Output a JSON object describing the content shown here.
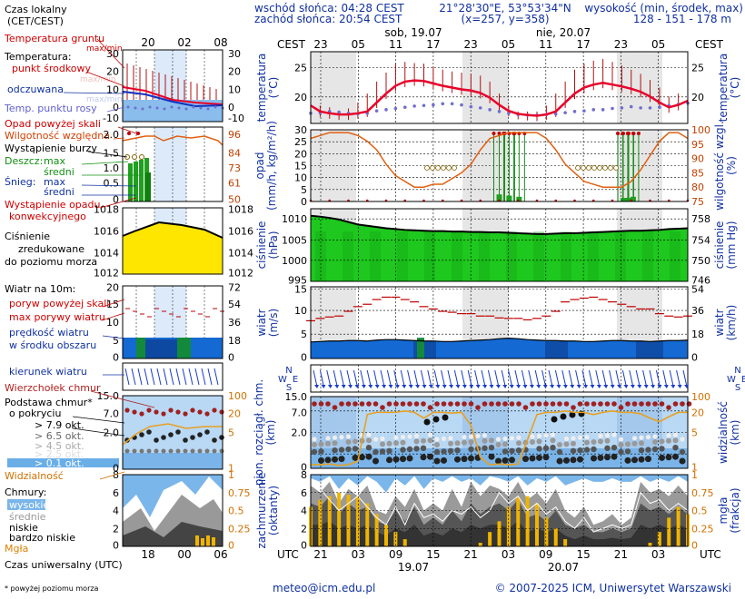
{
  "header": {
    "sunrise": "wschód słońca: 04:28 CEST",
    "sunset": "zachód słońca: 20:54 CEST",
    "coords": "21°28'30\"E, 53°53'34\"N",
    "grid": "(x=257,  y=358)",
    "height_title": "wysokość (min, środek, max)",
    "height_values": "128 - 151 - 178 m"
  },
  "time_axis": {
    "cest_label": "CEST",
    "utc_label": "UTC",
    "cest_ticks": [
      "23",
      "05",
      "11",
      "17",
      "23",
      "05",
      "11",
      "17",
      "23",
      "05"
    ],
    "utc_ticks": [
      "21",
      "03",
      "09",
      "15",
      "21",
      "03",
      "09",
      "15",
      "21",
      "03"
    ],
    "day_labels_top": [
      "sob, 19.07",
      "nie, 20.07"
    ],
    "day_labels_bottom": [
      "19.07",
      "20.07"
    ]
  },
  "legend": {
    "time_title_1": "Czas lokalny",
    "time_title_2": "(CET/CEST)",
    "time_ticks_top": [
      "20",
      "02",
      "08"
    ],
    "utc_title": "Czas uniwersalny (UTC)",
    "utc_ticks": [
      "18",
      "00",
      "06"
    ],
    "temp": {
      "ground": "Temperatura gruntu",
      "ground_sub": "max/min",
      "title": "Temperatura:",
      "mid": "punkt środkowy",
      "max_min": "max/min",
      "felt": "odczuwana",
      "felt_sub": "max/min",
      "dew": "Temp. punktu rosy",
      "ticks_left": [
        "30",
        "20",
        "10",
        "0",
        "-10"
      ],
      "ticks_right": [
        "30",
        "20",
        "10",
        "0",
        "-10"
      ]
    },
    "precip": {
      "excess": "Opad powyżej skali",
      "humidity": "Wilgotność względna",
      "storm": "Wystąpienie burzy",
      "rain": "Deszcz:",
      "rain_max": "max",
      "rain_mid": "średni",
      "snow": "Śnieg:",
      "snow_max": "max",
      "snow_mid": "średni",
      "convective_1": "Wystąpienie opadu",
      "convective_2": "konwekcyjnego",
      "ticks_left": [
        "2.0",
        "1.5",
        "1.0",
        "0.5",
        "0"
      ],
      "ticks_right": [
        "96",
        "84",
        "73",
        "61",
        "50"
      ]
    },
    "pressure": {
      "l1": "Ciśnienie",
      "l2": "zredukowane",
      "l3": "do poziomu morza",
      "ticks_left": [
        "1018",
        "1016",
        "1014",
        "1012"
      ],
      "ticks_right": [
        "1018",
        "1016",
        "1014",
        "1012"
      ]
    },
    "wind": {
      "title": "Wiatr na 10m:",
      "gust_excess": "poryw powyżej skali",
      "gust_max": "max porywy wiatru",
      "speed_1": "prędkość wiatru",
      "speed_2": "w środku obszaru",
      "ticks_left": [
        "20",
        "15",
        "10",
        "5",
        "0"
      ],
      "ticks_right": [
        "72",
        "54",
        "36",
        "18",
        "0"
      ]
    },
    "direction": {
      "label": "kierunek wiatru"
    },
    "cloud_base": {
      "top": "Wierzchołek chmur",
      "base_1": "Podstawa chmur*",
      "base_2": "o pokryciu",
      "okt_79": "> 7.9 okt.",
      "okt_65": "> 6.5 okt.",
      "okt_45": "> 4.5 okt.",
      "okt_25": "> 2.5 okt.",
      "okt_01": "> 0.1 okt.",
      "visibility": "Widzialność",
      "ticks_left": [
        "15.0",
        "7.0",
        "2.0",
        "0"
      ],
      "ticks_right": [
        "100",
        "20",
        "5",
        "1"
      ]
    },
    "clouds": {
      "title": "Chmury:",
      "high": "wysokie",
      "mid": "średnie",
      "low": "niskie",
      "very_low": "bardzo niskie",
      "fog": "Mgła",
      "ticks_left": [
        "8",
        "6",
        "4",
        "2",
        "0"
      ],
      "ticks_right": [
        "1",
        "0.75",
        "0.5",
        "0.25",
        "0"
      ]
    },
    "footnote": "* powyżej poziomu morza"
  },
  "panels": {
    "temperature": {
      "label_l": "temperatura",
      "unit_l": "(°C)",
      "label_r": "temperatura",
      "unit_r": "(°C)",
      "ticks_r": [
        "25",
        "20"
      ],
      "ticks_l": [
        "25",
        "20"
      ]
    },
    "precip": {
      "label_l1": "opad",
      "label_l2": "(mm/h, kg/m²/h)",
      "label_r1": "wilgotność wzgl.",
      "label_r2": "(%)",
      "ticks_l": [
        "30",
        "25",
        "20",
        "15",
        "10",
        "5",
        "0"
      ],
      "ticks_r": [
        "100",
        "95",
        "90",
        "85",
        "80",
        "75"
      ]
    },
    "pressure": {
      "label_l1": "ciśnienie",
      "label_l2": "(hPa)",
      "label_r1": "ciśnienie",
      "label_r2": "(mm Hg)",
      "ticks_l": [
        "1010",
        "1005",
        "1000",
        "995"
      ],
      "ticks_r": [
        "758",
        "754",
        "750",
        "746"
      ]
    },
    "wind": {
      "label_l1": "wiatr",
      "label_l2": "(m/s)",
      "label_r1": "wiatr",
      "label_r2": "(km/h)",
      "ticks_l": [
        "15",
        "10",
        "5",
        "0"
      ],
      "ticks_r": [
        "54",
        "36",
        "18",
        "0"
      ]
    },
    "direction": {
      "n": "N",
      "w": "W",
      "s": "S",
      "e": "E"
    },
    "clouds": {
      "label_l1": "pion. rozciągł. chm.",
      "label_l2": "(km)",
      "label_r1": "widzialność",
      "label_r2": "(km)",
      "ticks_l": [
        "15.0",
        "7.0",
        "2.0",
        "0"
      ],
      "ticks_r": [
        "100",
        "20",
        "5",
        "1"
      ]
    },
    "cover": {
      "label_l1": "zachmurzenie",
      "label_l2": "(oktanty)",
      "label_r1": "mgła",
      "label_r2": "(frakcja)",
      "ticks_l": [
        "8",
        "6",
        "4",
        "2",
        "0"
      ],
      "ticks_r": [
        "1",
        "0.75",
        "0.5",
        "0.25",
        "0"
      ]
    }
  },
  "footer": {
    "email": "meteo@icm.edu.pl",
    "copyright": "© 2007-2025 ICM, Uniwersytet Warszawski"
  },
  "colors": {
    "temperature": "#e8002a",
    "dew": "#6f6fd0",
    "humidity": "#e06010",
    "rain": "#1fa01f",
    "pressure_fill": "#1ec81e",
    "wind_fill": "#1469d2",
    "gust": "#c00000",
    "cloud_top": "#a02020",
    "visibility": "#e8a020",
    "fog": "#f0b400",
    "night_band": "#e6e6e6",
    "blue_label": "#1030a0",
    "red_label": "#d00000"
  },
  "chart_data": {
    "type": "line",
    "x_label": "",
    "hours_utc_start": "18",
    "temperature_c": [
      18.5,
      17.5,
      17.2,
      17,
      17,
      17.2,
      17.5,
      19,
      20.5,
      21.8,
      22.5,
      22.7,
      22.6,
      22.2,
      21.8,
      21.5,
      21.2,
      21,
      20.6,
      19.8,
      18.6,
      17.6,
      17.1,
      16.9,
      16.8,
      17,
      17.5,
      19,
      20.5,
      21.5,
      22,
      22.3,
      22,
      21.7,
      21.3,
      20.8,
      20,
      19,
      18.2,
      18.6,
      19.3
    ],
    "temperature_max_c": [
      19.5,
      18.5,
      18.2,
      17.5,
      18,
      19,
      20.5,
      22.5,
      24,
      25.5,
      25.8,
      25.6,
      25.5,
      25,
      24.5,
      24.2,
      24,
      23.8,
      23.5,
      22.5,
      20.5,
      18.5,
      17.5,
      17.5,
      17.5,
      18.5,
      20.5,
      22.5,
      24.5,
      25.5,
      26,
      26.3,
      25.8,
      25.2,
      24.5,
      23.8,
      22.8,
      21.5,
      20,
      20.5,
      21
    ],
    "dew_point_c": [
      17.2,
      17.3,
      17.5,
      17.4,
      17.2,
      17.1,
      17.2,
      17.6,
      17.8,
      18,
      18.2,
      18.4,
      18.5,
      18.6,
      18.8,
      18.8,
      18.6,
      18.3,
      18.1,
      17.8,
      17.5,
      17.2,
      17,
      16.9,
      16.9,
      17,
      17.1,
      17.3,
      17.5,
      17.6,
      17.8,
      17.8,
      18,
      18.1,
      18.3,
      18.1,
      18.1,
      18.2,
      18.5,
      18.7,
      18.9
    ],
    "humidity_pct": [
      97,
      98,
      99,
      99,
      99,
      98,
      96,
      93,
      88,
      84,
      82,
      80,
      80,
      81,
      81,
      83,
      85,
      88,
      93,
      97,
      98,
      99,
      99,
      99,
      99,
      97,
      93,
      88,
      85,
      82,
      81,
      80,
      80,
      80,
      82,
      86,
      91,
      96,
      99,
      99,
      97
    ],
    "pressure_hpa": [
      1010.8,
      1010.6,
      1010.3,
      1009.9,
      1009.3,
      1008.7,
      1008.4,
      1008.1,
      1007.8,
      1007.6,
      1007.4,
      1007.3,
      1007.2,
      1007.1,
      1007.1,
      1007,
      1007,
      1006.9,
      1006.9,
      1006.8,
      1006.8,
      1006.7,
      1006.6,
      1006.5,
      1006.4,
      1006.4,
      1006.5,
      1006.6,
      1006.6,
      1006.7,
      1006.8,
      1006.9,
      1007,
      1007.1,
      1007.2,
      1007.2,
      1007.3,
      1007.4,
      1007.6,
      1007.7,
      1007.8
    ],
    "wind_ms": [
      3.5,
      3.6,
      3.7,
      3.7,
      3.8,
      3.8,
      3.7,
      3.9,
      4,
      4,
      3.9,
      3.8,
      3.7,
      3.7,
      3.6,
      3.6,
      3.7,
      3.8,
      3.9,
      4,
      4.2,
      4.3,
      4.2,
      4,
      3.9,
      3.8,
      3.8,
      3.7,
      3.7,
      3.6,
      3.6,
      3.7,
      3.8,
      3.8,
      3.7,
      3.7,
      3.6,
      3.7,
      3.8,
      3.8,
      3.9
    ],
    "gust_ms": [
      8,
      8.5,
      8.8,
      9,
      10,
      11,
      11.5,
      12.5,
      13,
      13,
      12.5,
      12,
      11,
      10.5,
      10,
      9.8,
      9.5,
      9.5,
      9,
      9,
      8.6,
      8.5,
      8.5,
      8.2,
      8.5,
      9,
      10,
      12,
      12.5,
      12.8,
      13,
      12.5,
      12,
      11.5,
      11,
      10.5,
      10.5,
      9.5,
      9,
      8.8,
      9
    ],
    "fog_fraction": [
      0.55,
      0.65,
      0.7,
      0.75,
      0.72,
      0.7,
      0.6,
      0.45,
      0.3,
      0.2,
      0.1,
      0,
      0,
      0,
      0,
      0,
      0,
      0,
      0.05,
      0.2,
      0.35,
      0.55,
      0.68,
      0.7,
      0.6,
      0.4,
      0.25,
      0.1,
      0,
      0,
      0,
      0,
      0,
      0,
      0,
      0,
      0.05,
      0.2,
      0.4,
      0.55,
      0.45
    ],
    "precip_events": [
      {
        "utc_hour": 38,
        "mm": 6
      },
      {
        "utc_hour": 40,
        "mm": 5
      },
      {
        "utc_hour": 42,
        "mm": 4
      },
      {
        "utc_hour": 63,
        "mm": 3
      },
      {
        "utc_hour": 64,
        "mm": 3
      },
      {
        "utc_hour": 65,
        "mm": 4
      }
    ]
  }
}
